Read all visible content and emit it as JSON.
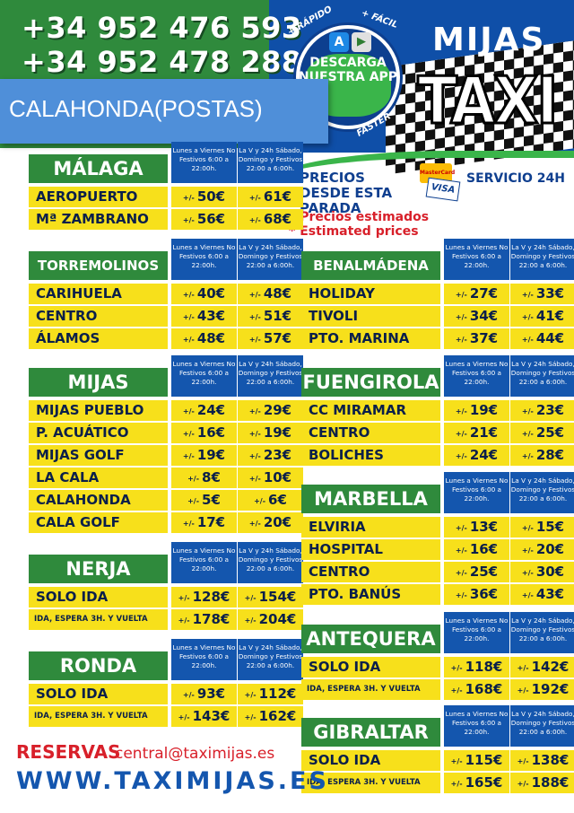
{
  "header": {
    "phone1": "+34 952 476 593",
    "phone2": "+34 952 478 288",
    "location_tag": "CALAHONDA(POSTAS)",
    "app": {
      "top_left": "+ RÁPIDO",
      "top_right": "+ FÁCIL",
      "text": "DESCARGA NUESTRA APP",
      "bottom": "FASTER"
    },
    "brand_top": "MIJAS",
    "brand_main": "TAXI",
    "precios": "PRECIOS DESDE ESTA PARADA",
    "card_mc": "MasterCard",
    "card_visa": "VISA",
    "servicio": "SERVICIO 24H",
    "note1": "* Precios estimados",
    "note2": "* Estimated prices"
  },
  "columns": {
    "a": "Lunes a Viernes No Festivos 6:00 a 22:00h.",
    "b": "La V y 24h Sábado, Domingo y Festivos 22:00 a 6:00h."
  },
  "pm": "+/-",
  "tables": [
    {
      "city": "MÁLAGA",
      "rows": [
        {
          "name": "AEROPUERTO",
          "a": "50€",
          "b": "61€"
        },
        {
          "name": "Mª ZAMBRANO",
          "a": "56€",
          "b": "68€"
        }
      ]
    },
    {
      "city": "TORREMOLINOS",
      "rows": [
        {
          "name": "CARIHUELA",
          "a": "40€",
          "b": "48€"
        },
        {
          "name": "CENTRO",
          "a": "43€",
          "b": "51€"
        },
        {
          "name": "ÁLAMOS",
          "a": "48€",
          "b": "57€"
        }
      ]
    },
    {
      "city": "MIJAS",
      "rows": [
        {
          "name": "MIJAS PUEBLO",
          "a": "24€",
          "b": "29€"
        },
        {
          "name": "P. ACUÁTICO",
          "a": "16€",
          "b": "19€"
        },
        {
          "name": "MIJAS GOLF",
          "a": "19€",
          "b": "23€"
        },
        {
          "name": "LA CALA",
          "a": "8€",
          "b": "10€"
        },
        {
          "name": "CALAHONDA",
          "a": "5€",
          "b": "6€"
        },
        {
          "name": "CALA GOLF",
          "a": "17€",
          "b": "20€"
        }
      ]
    },
    {
      "city": "NERJA",
      "rows": [
        {
          "name": "SOLO IDA",
          "a": "128€",
          "b": "154€"
        },
        {
          "name": "IDA, ESPERA 3H. Y VUELTA",
          "a": "178€",
          "b": "204€"
        }
      ]
    },
    {
      "city": "RONDA",
      "rows": [
        {
          "name": "SOLO IDA",
          "a": "93€",
          "b": "112€"
        },
        {
          "name": "IDA, ESPERA 3H. Y VUELTA",
          "a": "143€",
          "b": "162€"
        }
      ]
    },
    {
      "city": "BENALMÁDENA",
      "rows": [
        {
          "name": "HOLIDAY",
          "a": "27€",
          "b": "33€"
        },
        {
          "name": "TIVOLI",
          "a": "34€",
          "b": "41€"
        },
        {
          "name": "PTO. MARINA",
          "a": "37€",
          "b": "44€"
        }
      ]
    },
    {
      "city": "FUENGIROLA",
      "rows": [
        {
          "name": "CC MIRAMAR",
          "a": "19€",
          "b": "23€"
        },
        {
          "name": "CENTRO",
          "a": "21€",
          "b": "25€"
        },
        {
          "name": "BOLICHES",
          "a": "24€",
          "b": "28€"
        }
      ]
    },
    {
      "city": "MARBELLA",
      "rows": [
        {
          "name": "ELVIRIA",
          "a": "13€",
          "b": "15€"
        },
        {
          "name": "HOSPITAL",
          "a": "16€",
          "b": "20€"
        },
        {
          "name": "CENTRO",
          "a": "25€",
          "b": "30€"
        },
        {
          "name": "PTO. BANÚS",
          "a": "36€",
          "b": "43€"
        }
      ]
    },
    {
      "city": "ANTEQUERA",
      "rows": [
        {
          "name": "SOLO IDA",
          "a": "118€",
          "b": "142€"
        },
        {
          "name": "IDA, ESPERA 3H. Y VUELTA",
          "a": "168€",
          "b": "192€"
        }
      ]
    },
    {
      "city": "GIBRALTAR",
      "rows": [
        {
          "name": "SOLO IDA",
          "a": "115€",
          "b": "138€"
        },
        {
          "name": "IDA, ESPERA 3H. Y VUELTA",
          "a": "165€",
          "b": "188€"
        }
      ]
    }
  ],
  "footer": {
    "reservas": "RESERVAS",
    "email": "central@taximijas.es",
    "web": "WWW.TAXIMIJAS.ES"
  }
}
